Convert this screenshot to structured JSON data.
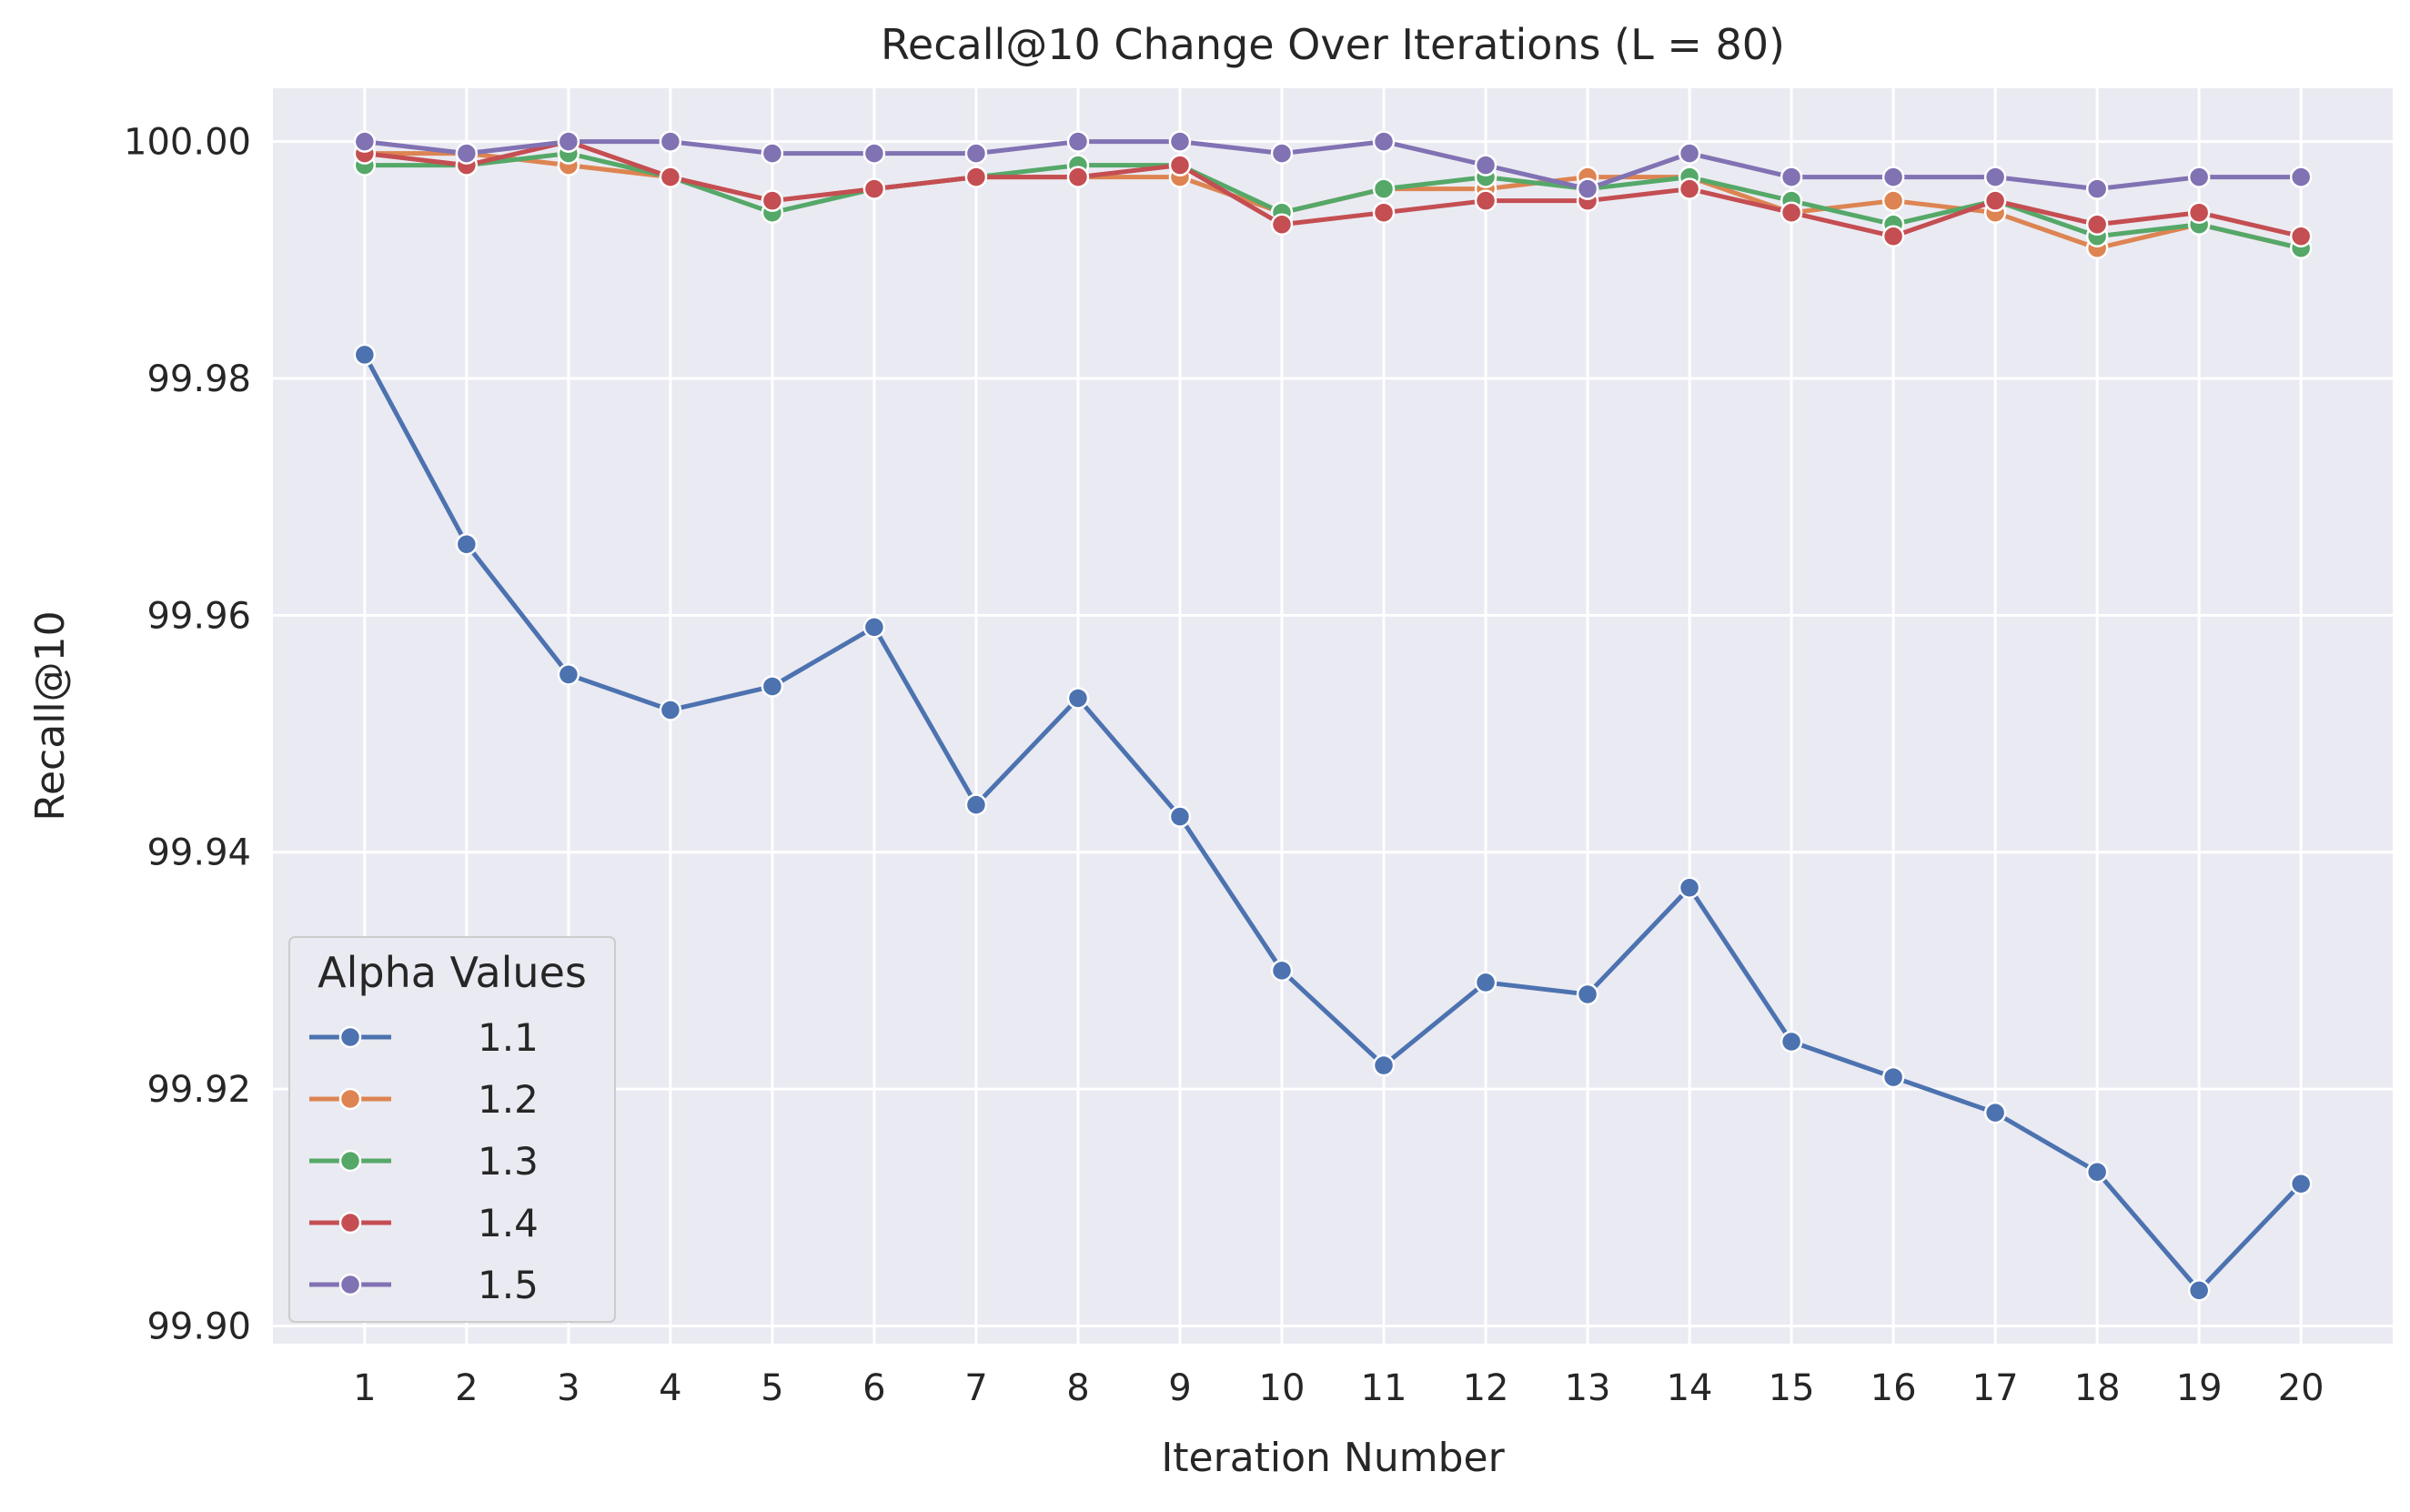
{
  "chart_data": {
    "type": "line",
    "title": "Recall@10 Change Over Iterations (L = 80)",
    "xlabel": "Iteration Number",
    "ylabel": "Recall@10",
    "x": [
      1,
      2,
      3,
      4,
      5,
      6,
      7,
      8,
      9,
      10,
      11,
      12,
      13,
      14,
      15,
      16,
      17,
      18,
      19,
      20
    ],
    "x_tick_labels": [
      "1",
      "2",
      "3",
      "4",
      "5",
      "6",
      "7",
      "8",
      "9",
      "10",
      "11",
      "12",
      "13",
      "14",
      "15",
      "16",
      "17",
      "18",
      "19",
      "20"
    ],
    "y_ticks": [
      99.9,
      99.92,
      99.94,
      99.96,
      99.98,
      100.0
    ],
    "y_tick_labels": [
      "99.90",
      "99.92",
      "99.94",
      "99.96",
      "99.98",
      "100.00"
    ],
    "xlim": [
      0.1,
      20.9
    ],
    "ylim": [
      99.8985,
      100.0045
    ],
    "grid": true,
    "legend": {
      "title": "Alpha Values",
      "placement": "lower-left"
    },
    "series": [
      {
        "name": "1.1",
        "color": "#4c72b0",
        "values": [
          99.982,
          99.966,
          99.955,
          99.952,
          99.954,
          99.959,
          99.944,
          99.953,
          99.943,
          99.93,
          99.922,
          99.929,
          99.928,
          99.937,
          99.924,
          99.921,
          99.918,
          99.913,
          99.903,
          99.912
        ]
      },
      {
        "name": "1.2",
        "color": "#dd8452",
        "values": [
          99.999,
          99.999,
          99.998,
          99.997,
          99.995,
          99.996,
          99.997,
          99.997,
          99.997,
          99.994,
          99.996,
          99.996,
          99.997,
          99.997,
          99.994,
          99.995,
          99.994,
          99.991,
          99.993,
          99.991
        ]
      },
      {
        "name": "1.3",
        "color": "#55a868",
        "values": [
          99.998,
          99.998,
          99.999,
          99.997,
          99.994,
          99.996,
          99.997,
          99.998,
          99.998,
          99.994,
          99.996,
          99.997,
          99.996,
          99.997,
          99.995,
          99.993,
          99.995,
          99.992,
          99.993,
          99.991
        ]
      },
      {
        "name": "1.4",
        "color": "#c44e52",
        "values": [
          99.999,
          99.998,
          100.0,
          99.997,
          99.995,
          99.996,
          99.997,
          99.997,
          99.998,
          99.993,
          99.994,
          99.995,
          99.995,
          99.996,
          99.994,
          99.992,
          99.995,
          99.993,
          99.994,
          99.992
        ]
      },
      {
        "name": "1.5",
        "color": "#8172b3",
        "values": [
          100.0,
          99.999,
          100.0,
          100.0,
          99.999,
          99.999,
          99.999,
          100.0,
          100.0,
          99.999,
          100.0,
          99.998,
          99.996,
          99.999,
          99.997,
          99.997,
          99.997,
          99.996,
          99.997,
          99.997
        ]
      }
    ],
    "colors": {
      "plot_background": "#eaeaf2",
      "grid": "#ffffff",
      "text": "#262626"
    }
  }
}
